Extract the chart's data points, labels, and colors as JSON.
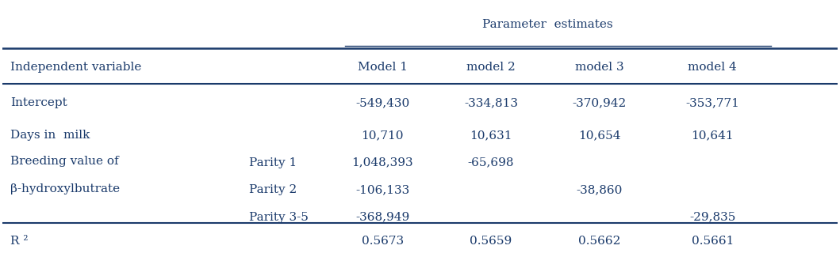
{
  "title": "Parameter  estimates",
  "col_headers": [
    "Model 1",
    "model 2",
    "model 3",
    "model 4"
  ],
  "col_header_label": "Independent variable",
  "rows": [
    {
      "label1": "Intercept",
      "label2": "",
      "values": [
        "-549,430",
        "-334,813",
        "-370,942",
        "-353,771"
      ]
    },
    {
      "label1": "Days in  milk",
      "label2": "",
      "values": [
        "10,710",
        "10,631",
        "10,654",
        "10,641"
      ]
    },
    {
      "label1": "Breeding value of",
      "label2": "Parity 1",
      "values": [
        "1,048,393",
        "-65,698",
        "",
        ""
      ]
    },
    {
      "label1": "β-hydroxylbutrate",
      "label2": "Parity 2",
      "values": [
        "-106,133",
        "",
        "-38,860",
        ""
      ]
    },
    {
      "label1": "",
      "label2": "Parity 3-5",
      "values": [
        "-368,949",
        "",
        "",
        "-29,835"
      ]
    },
    {
      "label1": "R ²",
      "label2": "",
      "values": [
        "0.5673",
        "0.5659",
        "0.5662",
        "0.5661"
      ]
    }
  ],
  "text_color": "#1a3a6b",
  "bg_color": "#ffffff",
  "font_size": 11
}
